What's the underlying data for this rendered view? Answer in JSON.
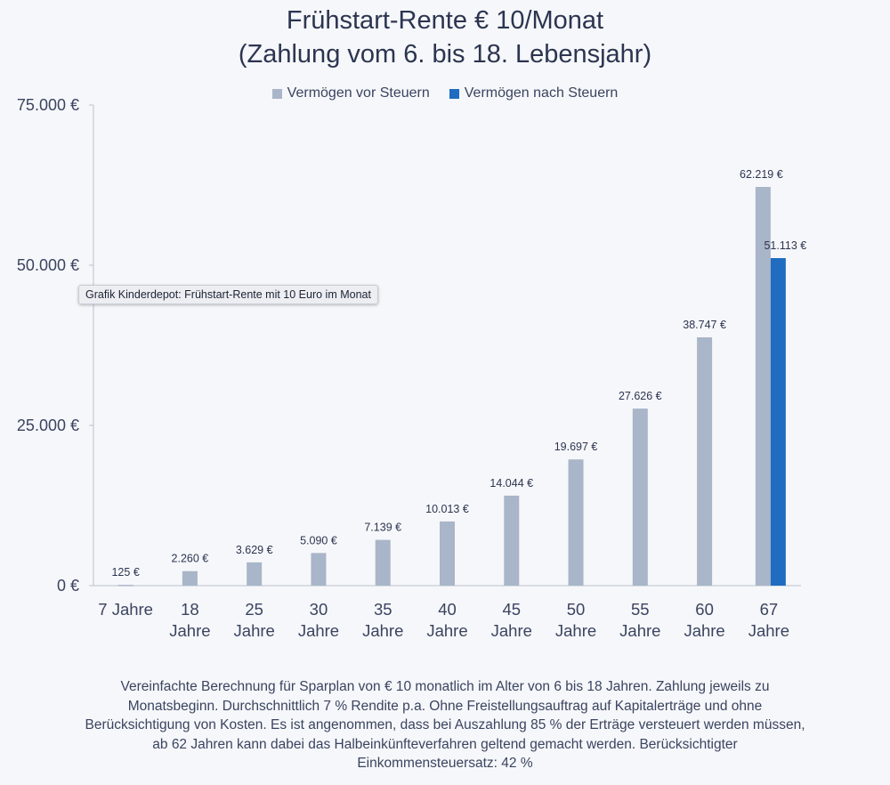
{
  "chart_data": {
    "type": "bar",
    "title": "Frühstart-Rente € 10/Monat",
    "subtitle": "(Zahlung vom 6. bis 18. Lebensjahr)",
    "categories": [
      [
        "7 Jahre"
      ],
      [
        "18",
        "Jahre"
      ],
      [
        "25",
        "Jahre"
      ],
      [
        "30",
        "Jahre"
      ],
      [
        "35",
        "Jahre"
      ],
      [
        "40",
        "Jahre"
      ],
      [
        "45",
        "Jahre"
      ],
      [
        "50",
        "Jahre"
      ],
      [
        "55",
        "Jahre"
      ],
      [
        "60",
        "Jahre"
      ],
      [
        "67",
        "Jahre"
      ]
    ],
    "series": [
      {
        "name": "Vermögen vor Steuern",
        "color": "#a9b5c8",
        "values": [
          125,
          2260,
          3629,
          5090,
          7139,
          10013,
          14044,
          19697,
          27626,
          38747,
          62219
        ],
        "labels": [
          "125 €",
          "2.260 €",
          "3.629 €",
          "5.090 €",
          "7.139 €",
          "10.013 €",
          "14.044 €",
          "19.697 €",
          "27.626 €",
          "38.747 €",
          "62.219 €"
        ]
      },
      {
        "name": "Vermögen nach Steuern",
        "color": "#1f6cc0",
        "values": [
          null,
          null,
          null,
          null,
          null,
          null,
          null,
          null,
          null,
          null,
          51113
        ],
        "labels": [
          "",
          "",
          "",
          "",
          "",
          "",
          "",
          "",
          "",
          "",
          "51.113 €"
        ]
      }
    ],
    "ylim": [
      0,
      75000
    ],
    "yticks": [
      {
        "value": 0,
        "label": "0 €"
      },
      {
        "value": 25000,
        "label": "25.000 €"
      },
      {
        "value": 50000,
        "label": "50.000 €"
      },
      {
        "value": 75000,
        "label": "75.000 €"
      }
    ],
    "grid": false,
    "legend_position": "top-center"
  },
  "tooltip": "Grafik Kinderdepot: Frühstart-Rente mit 10 Euro im Monat",
  "footnote": "Vereinfachte Berechnung für Sparplan von € 10 monatlich im Alter von 6 bis 18 Jahren. Zahlung jeweils zu Monatsbeginn. Durchschnittlich 7 % Rendite p.a. Ohne Freistellungsauftrag auf Kapitalerträge und ohne Berücksichtigung von Kosten. Es ist angenommen, dass bei Auszahlung 85 % der Erträge versteuert werden müssen, ab 62 Jahren kann dabei das Halbeinkünfteverfahren geltend gemacht werden. Berücksichtigter Einkommensteuersatz: 42 %"
}
